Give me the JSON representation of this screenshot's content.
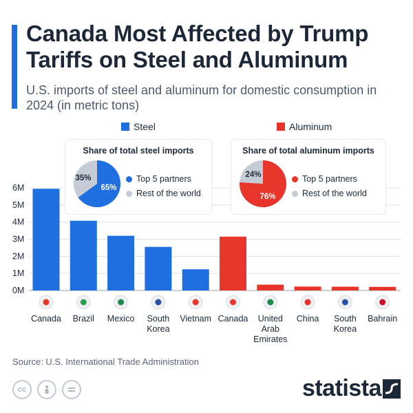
{
  "header": {
    "title": "Canada Most Affected by Trump Tariffs on Steel and Aluminum",
    "subtitle": "U.S. imports of steel and aluminum for domestic consumption in 2024 (in metric tons)"
  },
  "legend": {
    "steel": "Steel",
    "aluminum": "Aluminum"
  },
  "colors": {
    "steel": "#1f6fe0",
    "aluminum": "#e8352b",
    "rest": "#c5ccd6",
    "accent": "#1f6fe0"
  },
  "steel_share": {
    "title": "Share of total steel imports",
    "top5_label": "Top 5 partners",
    "rest_label": "Rest of the world",
    "top5_pct": "65%",
    "rest_pct": "35%",
    "top5_value": 65
  },
  "aluminum_share": {
    "title": "Share of total aluminum imports",
    "top5_label": "Top 5 partners",
    "rest_label": "Rest of the world",
    "top5_pct": "76%",
    "rest_pct": "24%",
    "top5_value": 76
  },
  "chart_data": {
    "type": "bar",
    "categories": [
      "Canada",
      "Brazil",
      "Mexico",
      "South Korea",
      "Vietnam",
      "Canada",
      "United Arab Emirates",
      "China",
      "South Korea",
      "Bahrain"
    ],
    "category_lines": [
      [
        "Canada"
      ],
      [
        "Brazil"
      ],
      [
        "Mexico"
      ],
      [
        "South",
        "Korea"
      ],
      [
        "Vietnam"
      ],
      [
        "Canada"
      ],
      [
        "United",
        "Arab",
        "Emirates"
      ],
      [
        "China"
      ],
      [
        "South",
        "Korea"
      ],
      [
        "Bahrain"
      ]
    ],
    "flags": [
      "canada-flag-icon",
      "brazil-flag-icon",
      "mexico-flag-icon",
      "south-korea-flag-icon",
      "vietnam-flag-icon",
      "canada-flag-icon",
      "uae-flag-icon",
      "china-flag-icon",
      "south-korea-flag-icon",
      "bahrain-flag-icon"
    ],
    "series": [
      {
        "name": "Steel",
        "values": [
          5950000,
          4080000,
          3200000,
          2550000,
          1240000,
          null,
          null,
          null,
          null,
          null
        ]
      },
      {
        "name": "Aluminum",
        "values": [
          null,
          null,
          null,
          null,
          null,
          3150000,
          340000,
          230000,
          220000,
          210000
        ]
      }
    ],
    "y_ticks": [
      0,
      1000000,
      2000000,
      3000000,
      4000000,
      5000000,
      6000000
    ],
    "y_tick_labels": [
      "0M",
      "1M",
      "2M",
      "3M",
      "4M",
      "5M",
      "6M"
    ],
    "ylim": [
      0,
      6000000
    ],
    "grid": true
  },
  "footer": {
    "source": "Source: U.S. International Trade Administration",
    "brand": "statista",
    "license_icons": [
      "cc-icon",
      "person-icon",
      "equals-icon"
    ]
  }
}
